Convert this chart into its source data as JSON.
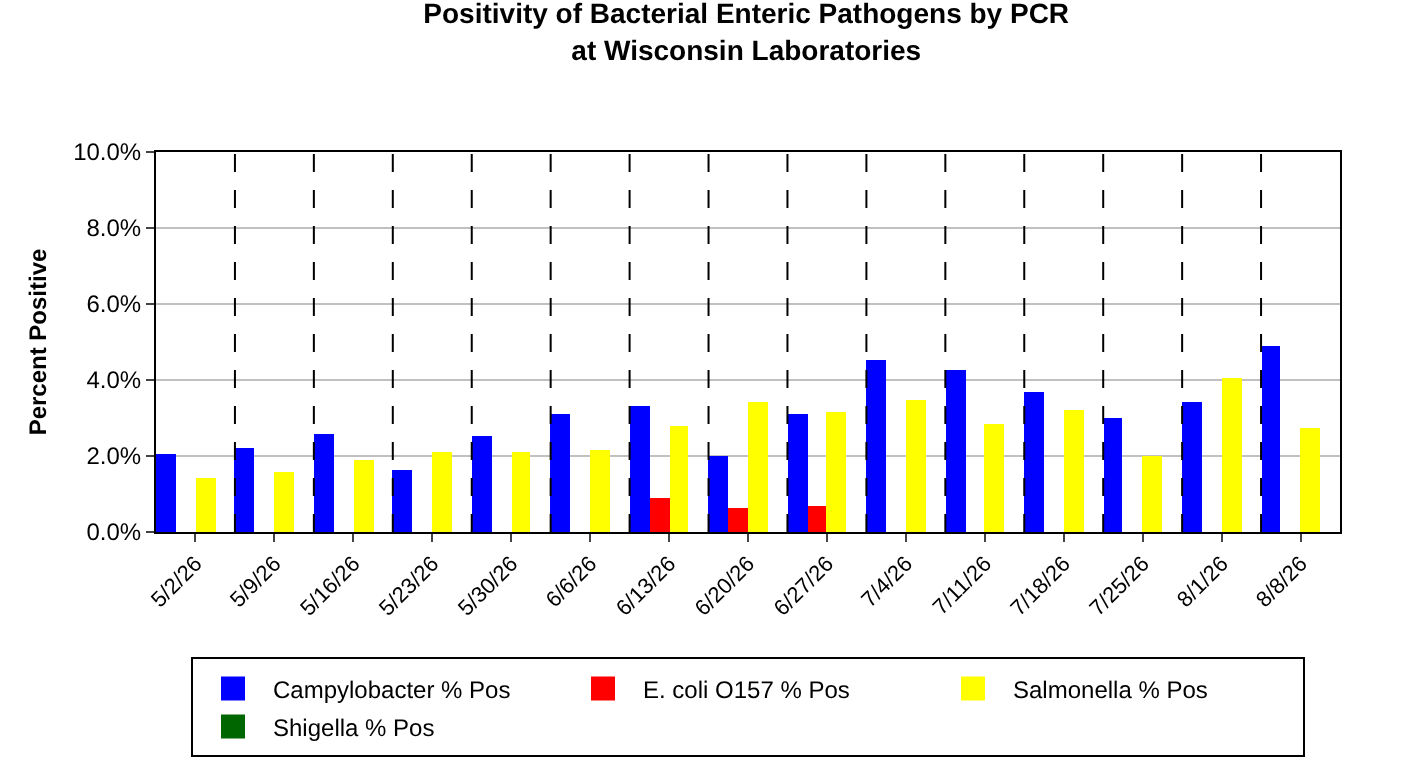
{
  "chart_data": {
    "type": "bar",
    "title": "Positivity of Bacterial Enteric Pathogens by PCR\nat Wisconsin Laboratories",
    "ylabel": "Percent Positive",
    "categories": [
      "5/2/26",
      "5/9/26",
      "5/16/26",
      "5/23/26",
      "5/30/26",
      "6/6/26",
      "6/13/26",
      "6/20/26",
      "6/27/26",
      "7/4/26",
      "7/11/26",
      "7/18/26",
      "7/25/26",
      "8/1/26",
      "8/8/26"
    ],
    "series": [
      {
        "name": "Campylobacter % Pos",
        "color": "#0000ff",
        "values": [
          2.06,
          2.22,
          2.59,
          1.65,
          2.55,
          3.13,
          3.33,
          1.98,
          3.09,
          4.52,
          4.27,
          3.66,
          3.0,
          3.41,
          4.9
        ]
      },
      {
        "name": "E. coli O157 % Pos",
        "color": "#ff0000",
        "values": [
          0,
          0,
          0,
          0,
          0,
          0,
          0.9,
          0.62,
          0.7,
          0,
          0,
          0,
          0,
          0,
          0
        ]
      },
      {
        "name": "Salmonella % Pos",
        "color": "#ffff00",
        "values": [
          1.44,
          1.6,
          1.89,
          2.1,
          2.1,
          2.14,
          2.8,
          3.41,
          3.16,
          3.45,
          2.84,
          3.2,
          2.0,
          4.06,
          2.72
        ]
      },
      {
        "name": "Shigella % Pos",
        "color": "#006600",
        "values": [
          0,
          0,
          0,
          0,
          0,
          0,
          0,
          0,
          0,
          0,
          0,
          0,
          0,
          0,
          0
        ]
      }
    ],
    "ylim": [
      0,
      10
    ],
    "yticks": [
      {
        "value": 0,
        "label": "0.0%"
      },
      {
        "value": 2,
        "label": "2.0%"
      },
      {
        "value": 4,
        "label": "4.0%"
      },
      {
        "value": 6,
        "label": "6.0%"
      },
      {
        "value": 8,
        "label": "8.0%"
      },
      {
        "value": 10,
        "label": "10.0%"
      }
    ],
    "grid": true,
    "legend": "bottom"
  }
}
